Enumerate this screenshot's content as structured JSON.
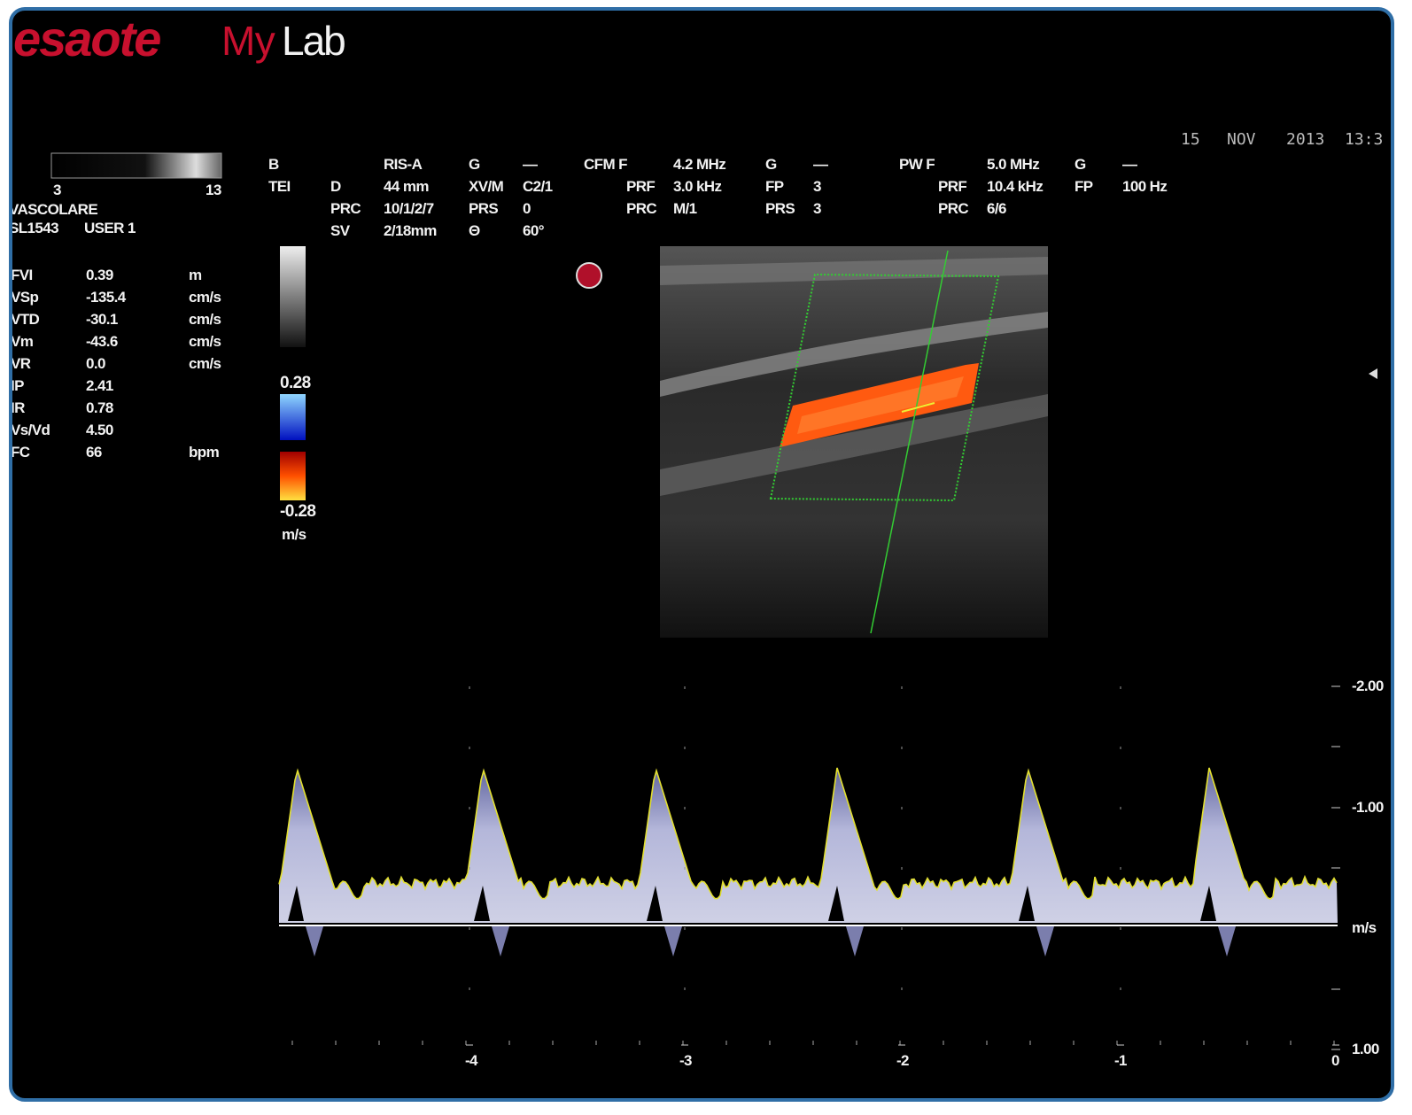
{
  "header": {
    "brand": "esaote",
    "product_prefix": "My",
    "product": "Lab",
    "date": [
      "15",
      "NOV",
      "2013",
      "13:3"
    ]
  },
  "gray_map": {
    "min": "3",
    "max": "13"
  },
  "preset": {
    "application": "VASCOLARE",
    "probe": "SL1543",
    "user": "USER 1"
  },
  "measurements": {
    "rows": [
      [
        "FVI",
        "0.39",
        "m"
      ],
      [
        "VSp",
        "-135.4",
        "cm/s"
      ],
      [
        "VTD",
        "-30.1",
        "cm/s"
      ],
      [
        "Vm",
        "-43.6",
        "cm/s"
      ],
      [
        "VR",
        "0.0",
        "cm/s"
      ],
      [
        "IP",
        "2.41"
      ],
      [
        "IR",
        "0.78"
      ],
      [
        "Vs/Vd",
        "4.50"
      ],
      [
        "FC",
        "66",
        "bpm"
      ]
    ]
  },
  "parameters": {
    "columns": [
      [
        "B",
        "TEI"
      ],
      [
        "D",
        "PRC",
        "SV"
      ],
      [
        "RIS-A",
        "44 mm",
        "10/1/2/7",
        "2/18mm"
      ],
      [
        "G",
        "XV/M",
        "PRS",
        "Θ"
      ],
      [
        "—",
        "C2/1",
        "0",
        "60°"
      ],
      [
        "CFM F"
      ],
      [
        "PRF",
        "PRC"
      ],
      [
        "4.2 MHz",
        "3.0 kHz",
        "M/1"
      ],
      [
        "G",
        "FP",
        "PRS"
      ],
      [
        "—",
        "3",
        "3"
      ],
      [
        "PW F"
      ],
      [
        "PRF",
        "PRC"
      ],
      [
        "5.0 MHz",
        "10.4 kHz",
        "6/6"
      ],
      [
        "G",
        "FP"
      ],
      [
        "—",
        "100 Hz"
      ]
    ]
  },
  "color_scale": {
    "max": "0.28",
    "min": "-0.28",
    "unit": "m/s"
  },
  "doppler": {
    "velocity_labels": [
      "-2.00",
      "-1.00",
      "m/s",
      "1.00"
    ],
    "time_labels": [
      "-4",
      "-3",
      "-2",
      "-1",
      "0"
    ]
  }
}
